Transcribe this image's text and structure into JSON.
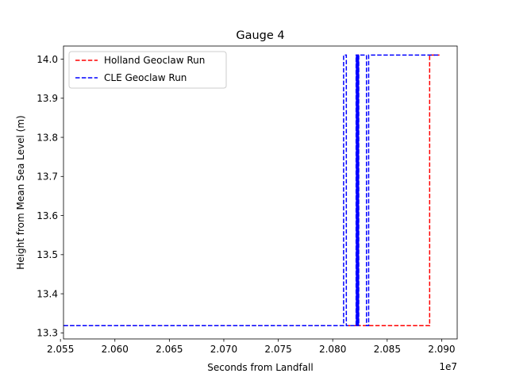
{
  "chart_data": {
    "type": "line",
    "title": "Gauge 4",
    "xlabel": "Seconds from Landfall",
    "ylabel": "Height from Mean Sea Level (m)",
    "x_offset_label": "1e7",
    "xlim": [
      20.5528,
      20.9143
    ],
    "ylim": [
      13.2845,
      14.0335
    ],
    "x_ticks": [
      {
        "value": 20.55,
        "label": "2.055"
      },
      {
        "value": 20.6,
        "label": "2.060"
      },
      {
        "value": 20.65,
        "label": "2.065"
      },
      {
        "value": 20.7,
        "label": "2.070"
      },
      {
        "value": 20.75,
        "label": "2.075"
      },
      {
        "value": 20.8,
        "label": "2.080"
      },
      {
        "value": 20.85,
        "label": "2.085"
      },
      {
        "value": 20.9,
        "label": "2.090"
      }
    ],
    "y_ticks": [
      {
        "value": 13.3,
        "label": "13.3"
      },
      {
        "value": 13.4,
        "label": "13.4"
      },
      {
        "value": 13.5,
        "label": "13.5"
      },
      {
        "value": 13.6,
        "label": "13.6"
      },
      {
        "value": 13.7,
        "label": "13.7"
      },
      {
        "value": 13.8,
        "label": "13.8"
      },
      {
        "value": 13.9,
        "label": "13.9"
      },
      {
        "value": 14.0,
        "label": "14.0"
      }
    ],
    "legend_position": "upper-left",
    "grid": false,
    "series": [
      {
        "name": "Holland Geoclaw Run",
        "color": "#ff0000",
        "style": "dashed",
        "points": [
          [
            20.553,
            13.3185
          ],
          [
            20.823,
            13.3185
          ],
          [
            20.823,
            14.0105
          ],
          [
            20.8236,
            14.0105
          ],
          [
            20.8236,
            13.3185
          ],
          [
            20.889,
            13.3185
          ],
          [
            20.889,
            14.0105
          ],
          [
            20.898,
            14.0105
          ]
        ]
      },
      {
        "name": "CLE Geoclaw Run",
        "color": "#0000ff",
        "style": "dashed",
        "points": [
          [
            20.553,
            13.3185
          ],
          [
            20.81,
            13.3185
          ],
          [
            20.81,
            14.0105
          ],
          [
            20.8125,
            14.0105
          ],
          [
            20.8125,
            13.3185
          ],
          [
            20.8215,
            13.3185
          ],
          [
            20.8215,
            14.0105
          ],
          [
            20.8218,
            14.0105
          ],
          [
            20.8218,
            13.3185
          ],
          [
            20.8221,
            13.3185
          ],
          [
            20.8221,
            14.0105
          ],
          [
            20.8224,
            14.0105
          ],
          [
            20.8224,
            13.3185
          ],
          [
            20.8227,
            13.3185
          ],
          [
            20.8227,
            14.0105
          ],
          [
            20.823,
            14.0105
          ],
          [
            20.823,
            13.3185
          ],
          [
            20.8233,
            13.3185
          ],
          [
            20.8233,
            14.0105
          ],
          [
            20.8236,
            14.0105
          ],
          [
            20.8236,
            13.3185
          ],
          [
            20.8239,
            13.3185
          ],
          [
            20.8239,
            14.0105
          ],
          [
            20.831,
            14.0105
          ],
          [
            20.831,
            13.3185
          ],
          [
            20.833,
            13.3185
          ],
          [
            20.833,
            14.0105
          ],
          [
            20.898,
            14.0105
          ]
        ]
      }
    ]
  }
}
